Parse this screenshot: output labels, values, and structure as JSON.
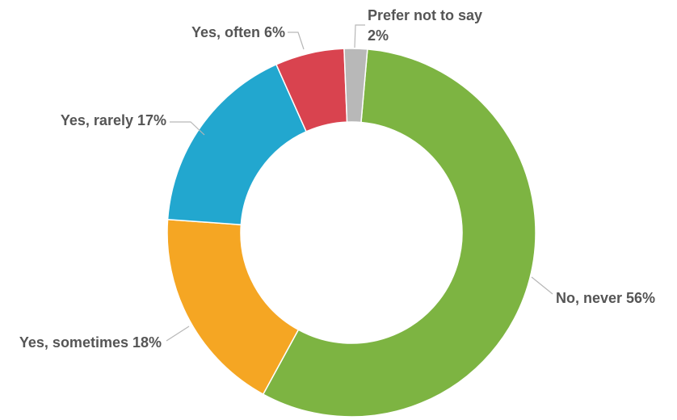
{
  "chart_data": {
    "type": "pie",
    "donut": true,
    "legend": "none",
    "slices": [
      {
        "name": "No, never",
        "value": 56,
        "label": "No, never 56%",
        "color": "#7db442"
      },
      {
        "name": "Yes, sometimes",
        "value": 18,
        "label": "Yes, sometimes 18%",
        "color": "#f5a623"
      },
      {
        "name": "Yes, rarely",
        "value": 17,
        "label": "Yes, rarely 17%",
        "color": "#22a7cf"
      },
      {
        "name": "Yes, often",
        "value": 6,
        "label": "Yes, often 6%",
        "color": "#d9434f"
      },
      {
        "name": "Prefer not to say",
        "value": 2,
        "label_lines": [
          "Prefer not to say",
          "2%"
        ],
        "color": "#b8b8b8"
      }
    ]
  }
}
